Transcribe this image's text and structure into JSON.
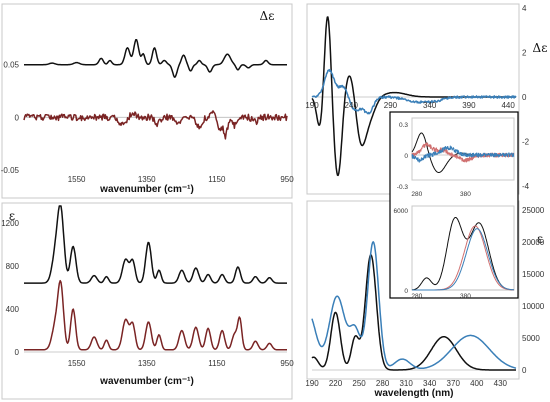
{
  "chart_data": [
    {
      "id": "ir_vcd",
      "type": "line",
      "ylabel": "Δε",
      "xlabel": "",
      "x_reversed": true,
      "xlim": [
        1700,
        950
      ],
      "ylim": [
        -0.05,
        0.1
      ],
      "x_ticks": [
        "1550",
        "1350",
        "1150",
        "950"
      ],
      "y_ticks": [
        "0.05",
        "0",
        "-0.05"
      ],
      "series": [
        {
          "color": "#111111",
          "baseline": 0.05,
          "peaks": [
            [
              1620,
              0.0015,
              8
            ],
            [
              1550,
              0.002,
              8
            ],
            [
              1480,
              0.006,
              6
            ],
            [
              1455,
              0.004,
              5
            ],
            [
              1405,
              0.016,
              7
            ],
            [
              1380,
              0.024,
              7
            ],
            [
              1360,
              0.01,
              5
            ],
            [
              1328,
              0.016,
              6
            ],
            [
              1300,
              0.004,
              6
            ],
            [
              1270,
              -0.012,
              6
            ],
            [
              1245,
              0.009,
              6
            ],
            [
              1225,
              -0.006,
              5
            ],
            [
              1200,
              0.004,
              5
            ],
            [
              1170,
              -0.007,
              6
            ],
            [
              1120,
              0.01,
              9
            ],
            [
              1090,
              -0.005,
              5
            ],
            [
              1060,
              -0.003,
              6
            ],
            [
              1010,
              0.004,
              6
            ]
          ]
        },
        {
          "color": "#7a2424",
          "baseline": 0.0,
          "noise": 0.003,
          "peaks": [
            [
              1420,
              -0.006,
              10
            ],
            [
              1390,
              0.004,
              6
            ],
            [
              1320,
              -0.006,
              8
            ],
            [
              1260,
              -0.006,
              6
            ],
            [
              1200,
              -0.008,
              8
            ],
            [
              1160,
              0.004,
              6
            ],
            [
              1140,
              -0.012,
              6
            ],
            [
              1125,
              -0.017,
              5
            ],
            [
              1100,
              -0.008,
              8
            ],
            [
              1040,
              -0.004,
              8
            ]
          ]
        }
      ]
    },
    {
      "id": "ir_abs",
      "type": "line",
      "ylabel": "ε",
      "xlabel": "wavenumber (cm⁻¹)",
      "x_reversed": true,
      "xlim": [
        1700,
        950
      ],
      "ylim": [
        0,
        1300
      ],
      "x_ticks": [
        "1550",
        "1350",
        "1150",
        "950"
      ],
      "y_ticks": [
        "1200",
        "800",
        "400",
        "0"
      ],
      "series": [
        {
          "color": "#111111",
          "baseline": 640,
          "peaks": [
            [
              1610,
              260,
              10
            ],
            [
              1595,
              640,
              9
            ],
            [
              1560,
              340,
              8
            ],
            [
              1500,
              70,
              8
            ],
            [
              1465,
              60,
              6
            ],
            [
              1410,
              220,
              9
            ],
            [
              1390,
              200,
              7
            ],
            [
              1345,
              380,
              8
            ],
            [
              1315,
              120,
              6
            ],
            [
              1250,
              120,
              8
            ],
            [
              1210,
              140,
              8
            ],
            [
              1175,
              80,
              7
            ],
            [
              1135,
              80,
              7
            ],
            [
              1090,
              150,
              7
            ],
            [
              1040,
              60,
              7
            ],
            [
              1000,
              50,
              7
            ]
          ]
        },
        {
          "color": "#7a2424",
          "baseline": 20,
          "peaks": [
            [
              1610,
              230,
              10
            ],
            [
              1595,
              560,
              8
            ],
            [
              1560,
              380,
              7
            ],
            [
              1500,
              120,
              8
            ],
            [
              1465,
              90,
              6
            ],
            [
              1410,
              280,
              9
            ],
            [
              1390,
              230,
              7
            ],
            [
              1345,
              260,
              8
            ],
            [
              1315,
              140,
              6
            ],
            [
              1250,
              180,
              8
            ],
            [
              1210,
              210,
              8
            ],
            [
              1175,
              200,
              7
            ],
            [
              1135,
              180,
              7
            ],
            [
              1100,
              140,
              7
            ],
            [
              1085,
              290,
              6
            ],
            [
              1040,
              80,
              7
            ],
            [
              1000,
              60,
              7
            ]
          ]
        }
      ]
    },
    {
      "id": "uv_ecd",
      "type": "line",
      "ylabel": "Δε",
      "xlabel": "",
      "xlim": [
        190,
        450
      ],
      "ylim": [
        -4,
        4
      ],
      "x_ticks": [
        "190",
        "240",
        "290",
        "340",
        "390",
        "440"
      ],
      "y_ticks": [
        "4",
        "2",
        "0",
        "-2",
        "-4"
      ],
      "series": [
        {
          "color": "#111111",
          "baseline": 0,
          "peaks": [
            [
              200,
              -1.4,
              4
            ],
            [
              210,
              3.8,
              4
            ],
            [
              223,
              -3.6,
              5
            ],
            [
              238,
              1.1,
              6
            ],
            [
              252,
              -1.7,
              6
            ],
            [
              262,
              -1.0,
              8
            ],
            [
              295,
              0.2,
              15
            ]
          ]
        },
        {
          "color": "#3a7fb8",
          "baseline": 0,
          "noise": 0.05,
          "peaks": [
            [
              212,
              1.2,
              6
            ],
            [
              230,
              0.5,
              6
            ],
            [
              245,
              -0.6,
              7
            ],
            [
              262,
              -0.7,
              6
            ],
            [
              320,
              -0.2,
              12
            ],
            [
              345,
              -0.18,
              12
            ]
          ]
        }
      ]
    },
    {
      "id": "uv_abs",
      "type": "line",
      "ylabel": "ε",
      "xlabel": "wavelength (nm)",
      "xlim": [
        190,
        450
      ],
      "ylim": [
        0,
        25000
      ],
      "x_ticks": [
        "190",
        "220",
        "250",
        "280",
        "310",
        "340",
        "370",
        "400",
        "430"
      ],
      "y_ticks": [
        "25000",
        "20000",
        "15000",
        "10000",
        "5000",
        "0"
      ],
      "series": [
        {
          "color": "#111111",
          "baseline": 0,
          "peaks": [
            [
              192,
              2000,
              6
            ],
            [
              220,
              9000,
              6
            ],
            [
              245,
              5000,
              5
            ],
            [
              265,
              18000,
              7
            ],
            [
              358,
              5200,
              16
            ]
          ]
        },
        {
          "color": "#3a7fb8",
          "baseline": 0,
          "peaks": [
            [
              185,
              9000,
              10
            ],
            [
              222,
              11500,
              10
            ],
            [
              245,
              6000,
              7
            ],
            [
              268,
              20000,
              7
            ],
            [
              305,
              1700,
              10
            ],
            [
              392,
              5400,
              24
            ]
          ]
        }
      ]
    },
    {
      "id": "inset_ecd",
      "type": "line",
      "xlim": [
        270,
        480
      ],
      "ylim": [
        -0.3,
        0.3
      ],
      "x_ticks": [
        "280",
        "380"
      ],
      "y_ticks": [
        "0.3",
        "0",
        "-0.3"
      ],
      "series": [
        {
          "color": "#111111",
          "baseline": 0,
          "peaks": [
            [
              290,
              0.22,
              10
            ],
            [
              325,
              -0.17,
              14
            ],
            [
              370,
              0.02,
              10
            ]
          ]
        },
        {
          "color": "#d07070",
          "baseline": 0,
          "noise": 0.02,
          "peaks": [
            [
              300,
              0.1,
              10
            ],
            [
              330,
              0.05,
              12
            ],
            [
              380,
              -0.05,
              14
            ]
          ]
        },
        {
          "color": "#3a7fb8",
          "baseline": 0,
          "noise": 0.02,
          "peaks": [
            [
              285,
              -0.05,
              8
            ],
            [
              345,
              0.07,
              14
            ]
          ]
        }
      ]
    },
    {
      "id": "inset_abs",
      "type": "line",
      "xlim": [
        270,
        480
      ],
      "ylim": [
        0,
        6000
      ],
      "x_ticks": [
        "280",
        "380"
      ],
      "y_ticks": [
        "6000",
        "0"
      ],
      "series": [
        {
          "color": "#111111",
          "baseline": 0,
          "peaks": [
            [
              358,
              5200,
              16
            ],
            [
              408,
              5000,
              20
            ],
            [
              300,
              900,
              10
            ]
          ]
        },
        {
          "color": "#d07070",
          "baseline": 0,
          "peaks": [
            [
              400,
              4800,
              22
            ]
          ]
        },
        {
          "color": "#3a7fb8",
          "baseline": 0,
          "peaks": [
            [
              404,
              4600,
              22
            ]
          ]
        }
      ]
    }
  ]
}
